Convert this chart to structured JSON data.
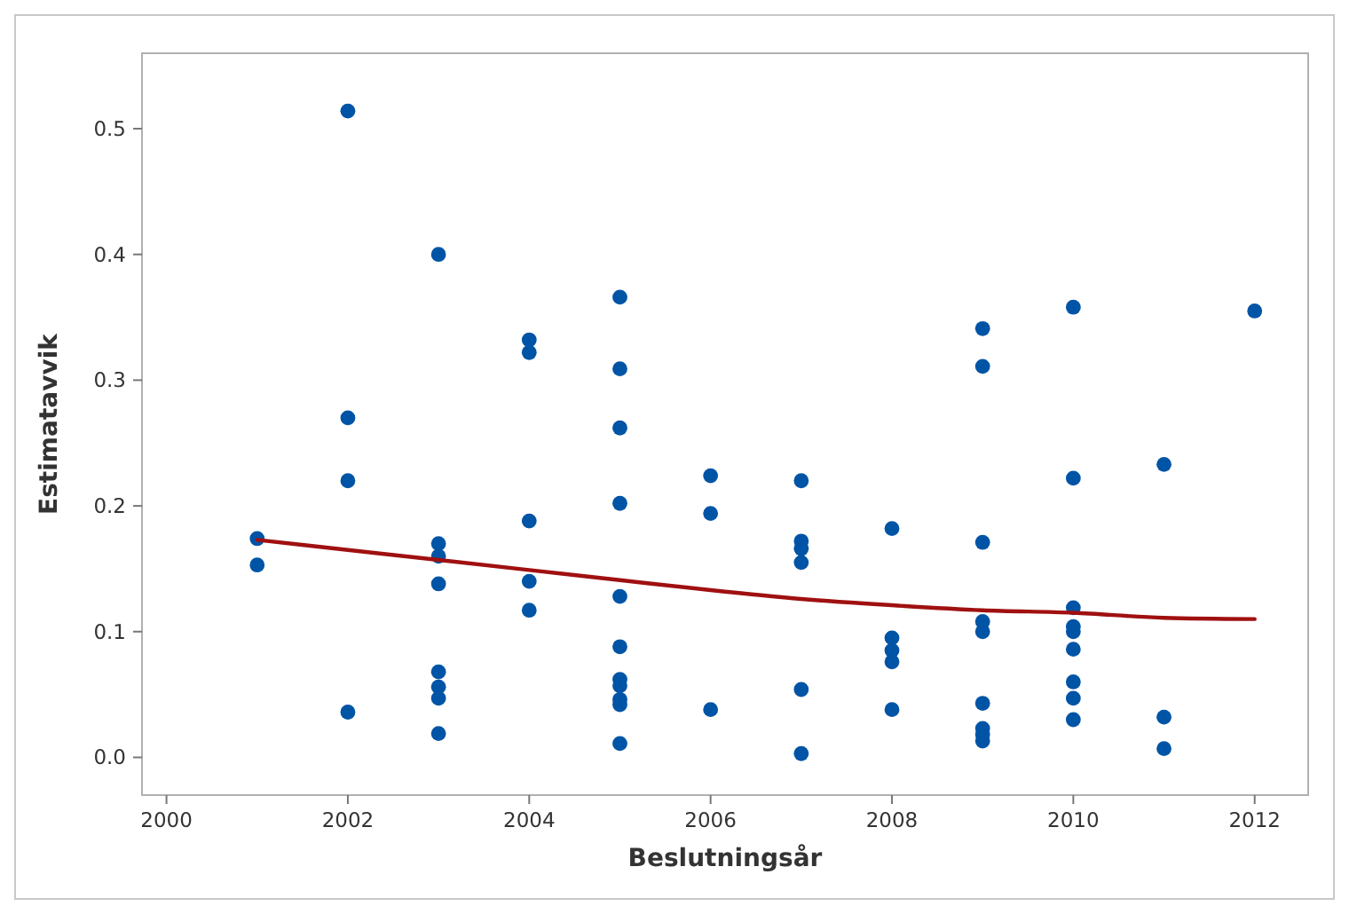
{
  "chart_data": {
    "type": "scatter",
    "xlabel": "Beslutningsår",
    "ylabel": "Estimatavvik",
    "xlim": [
      1999.73,
      2012.59
    ],
    "xticks": [
      2000,
      2002,
      2004,
      2006,
      2008,
      2010,
      2012
    ],
    "ylim": [
      -0.03,
      0.56
    ],
    "yticks": [
      {
        "value": 0,
        "label": "0.0"
      },
      {
        "value": 0.1,
        "label": "0.1"
      },
      {
        "value": 0.2,
        "label": "0.2"
      },
      {
        "value": 0.3,
        "label": "0.3"
      },
      {
        "value": 0.4,
        "label": "0.4"
      },
      {
        "value": 0.5,
        "label": "0.5"
      }
    ],
    "grid": false,
    "series": [
      {
        "marker": "circle",
        "color": "#0054a6",
        "x": [
          2001,
          2001,
          2002,
          2002,
          2002,
          2002,
          2003,
          2003,
          2003,
          2003,
          2003,
          2003,
          2003,
          2003,
          2004,
          2004,
          2004,
          2004,
          2004,
          2005,
          2005,
          2005,
          2005,
          2005,
          2005,
          2005,
          2005,
          2005,
          2005,
          2005,
          2006,
          2006,
          2006,
          2007,
          2007,
          2007,
          2007,
          2007,
          2007,
          2008,
          2008,
          2008,
          2008,
          2008,
          2009,
          2009,
          2009,
          2009,
          2009,
          2009,
          2009,
          2009,
          2009,
          2010,
          2010,
          2010,
          2010,
          2010,
          2010,
          2010,
          2010,
          2010,
          2011,
          2011,
          2011,
          2012
        ],
        "values": [
          0.174,
          0.153,
          0.514,
          0.27,
          0.22,
          0.036,
          0.4,
          0.17,
          0.16,
          0.138,
          0.068,
          0.056,
          0.047,
          0.019,
          0.332,
          0.322,
          0.188,
          0.14,
          0.117,
          0.366,
          0.309,
          0.262,
          0.202,
          0.128,
          0.088,
          0.062,
          0.057,
          0.046,
          0.042,
          0.011,
          0.224,
          0.194,
          0.038,
          0.22,
          0.172,
          0.166,
          0.155,
          0.054,
          0.003,
          0.182,
          0.095,
          0.085,
          0.076,
          0.038,
          0.341,
          0.311,
          0.171,
          0.108,
          0.1,
          0.043,
          0.023,
          0.018,
          0.013,
          0.358,
          0.222,
          0.119,
          0.104,
          0.1,
          0.086,
          0.06,
          0.047,
          0.03,
          0.233,
          0.032,
          0.007,
          0.355
        ]
      },
      {
        "type": "line",
        "marker": "none",
        "color": "#a01010",
        "x": [
          2001,
          2002,
          2003,
          2004,
          2005,
          2006,
          2007,
          2008,
          2009,
          2010,
          2011,
          2012
        ],
        "values": [
          0.173,
          0.165,
          0.157,
          0.149,
          0.141,
          0.133,
          0.126,
          0.121,
          0.117,
          0.115,
          0.111,
          0.11
        ]
      }
    ]
  }
}
